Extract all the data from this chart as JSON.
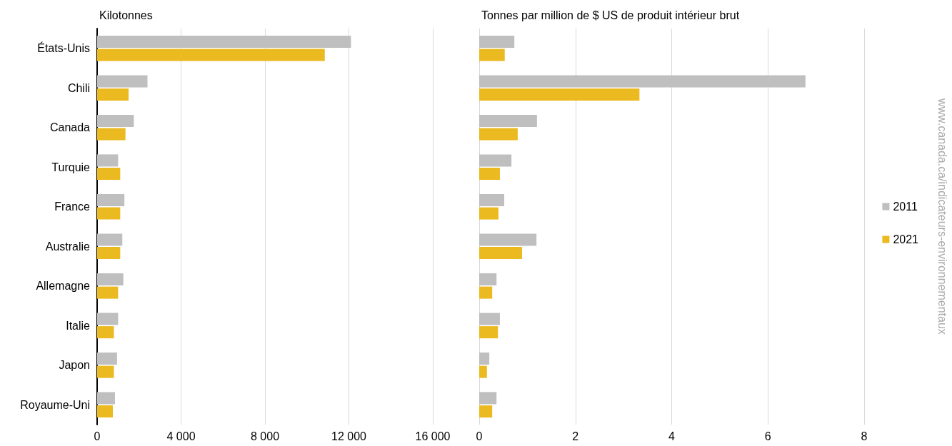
{
  "chart_data": [
    {
      "type": "bar",
      "orientation": "horizontal",
      "title": "Kilotonnes",
      "categories": [
        "États-Unis",
        "Chili",
        "Canada",
        "Turquie",
        "France",
        "Australie",
        "Allemagne",
        "Italie",
        "Japon",
        "Royaume-Uni"
      ],
      "series": [
        {
          "color": "#bfbfbf",
          "values": [
            12100,
            2400,
            1750,
            1000,
            1300,
            1200,
            1250,
            1000,
            950,
            850
          ]
        },
        {
          "color": "#ebb920",
          "values": [
            10850,
            1500,
            1350,
            1100,
            1100,
            1100,
            1000,
            800,
            800,
            750
          ]
        }
      ],
      "xlim": [
        0,
        16000
      ],
      "xticks": [
        0,
        {
          "value": 4000,
          "label": "4 000"
        },
        {
          "value": 8000,
          "label": "8 000"
        },
        {
          "value": 12000,
          "label": "12 000"
        },
        {
          "value": 16000,
          "label": "16 000"
        }
      ],
      "grid": "x"
    },
    {
      "type": "bar",
      "orientation": "horizontal",
      "title": "Tonnes par million de $ US de produit intérieur brut",
      "categories": [
        null,
        null,
        null,
        null,
        null,
        null,
        null,
        null,
        null,
        null
      ],
      "series": [
        {
          "name": "2011",
          "color": "#bfbfbf",
          "values": [
            0.73,
            6.78,
            1.2,
            0.67,
            0.52,
            1.19,
            0.36,
            0.43,
            0.21,
            0.36
          ]
        },
        {
          "name": "2021",
          "color": "#ebb920",
          "values": [
            0.53,
            3.33,
            0.8,
            0.43,
            0.4,
            0.89,
            0.27,
            0.39,
            0.16,
            0.27
          ]
        }
      ],
      "xlim": [
        0,
        8
      ],
      "xticks": [
        0,
        2,
        4,
        6,
        8
      ],
      "grid": "x",
      "tick_labels": "x",
      "legend": "right",
      "annotations": [
        "www.canada.ca/indicateurs-environnementaux"
      ]
    }
  ]
}
